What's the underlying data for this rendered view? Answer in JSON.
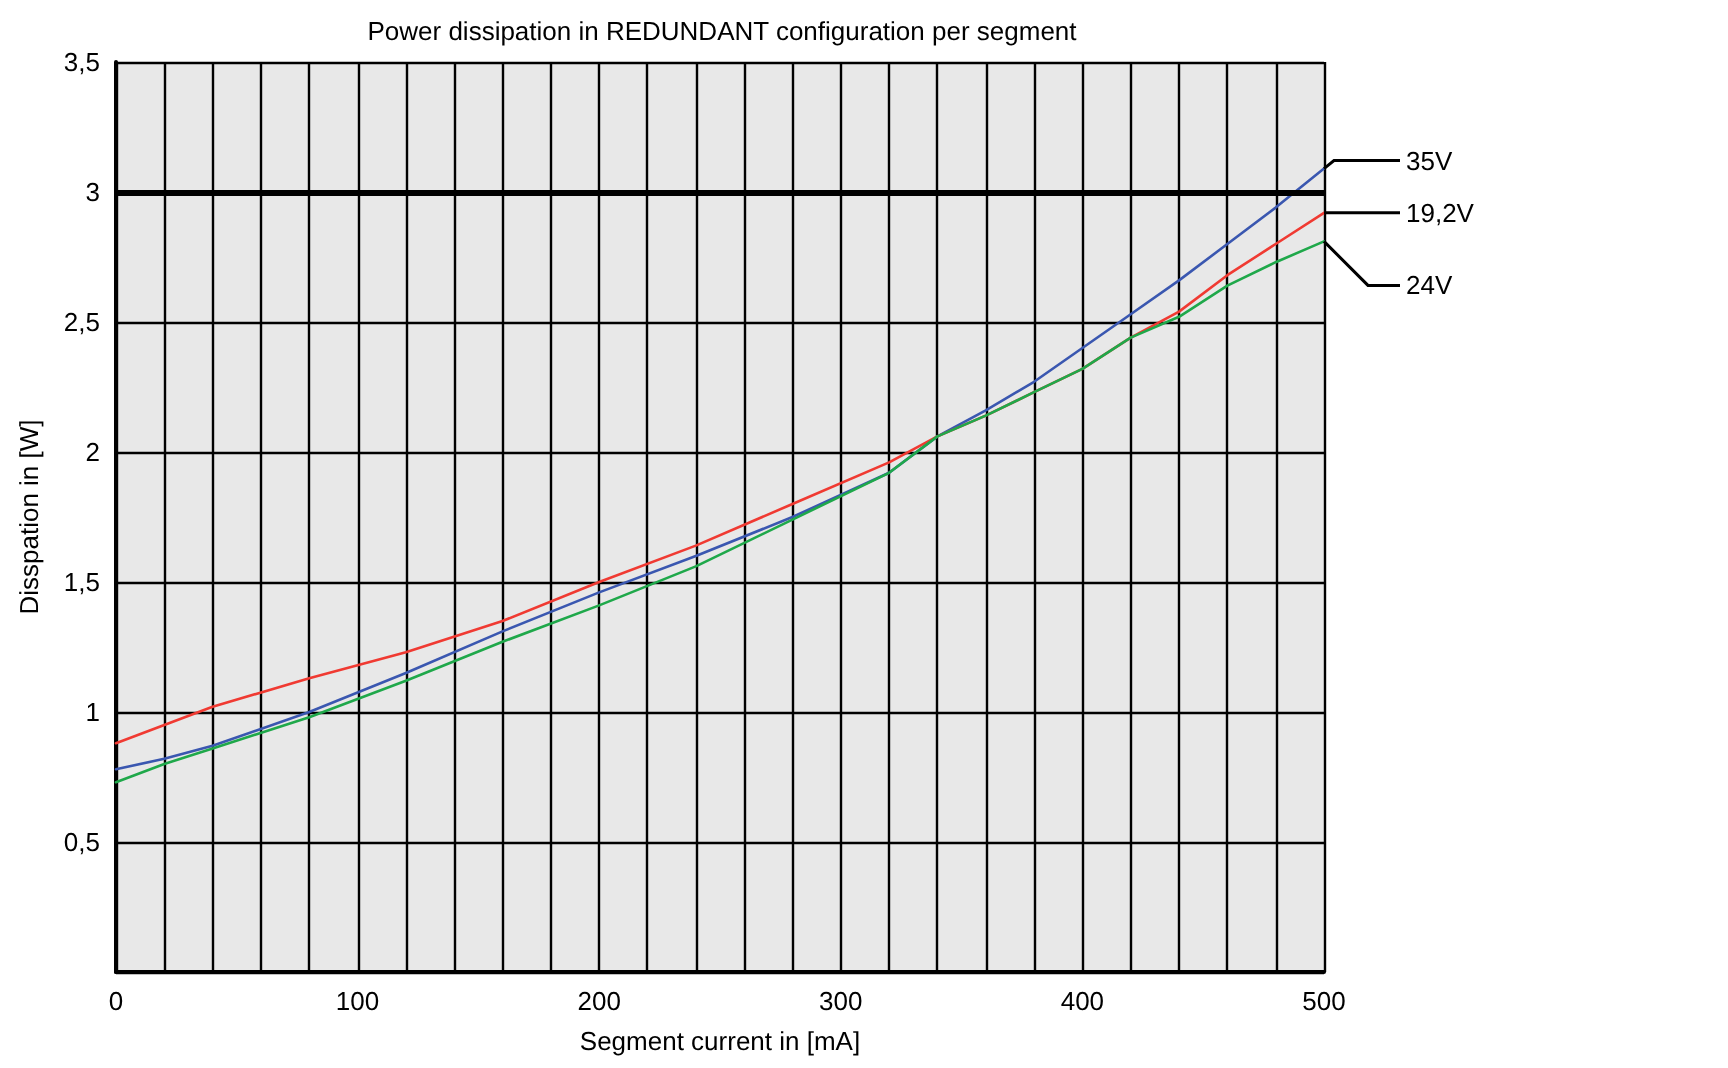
{
  "chart_data": {
    "type": "line",
    "title": "Power dissipation in REDUNDANT configuration per segment",
    "xlabel": "Segment current in [mA]",
    "ylabel": "Disspation in [W]",
    "xlim": [
      0,
      500
    ],
    "xticks": [
      0,
      {
        "value": 20,
        "label": null
      },
      {
        "value": 40,
        "label": null
      },
      {
        "value": 60,
        "label": null
      },
      {
        "value": 80,
        "label": null
      },
      100,
      {
        "value": 120,
        "label": null
      },
      {
        "value": 140,
        "label": null
      },
      {
        "value": 160,
        "label": null
      },
      {
        "value": 180,
        "label": null
      },
      200,
      {
        "value": 220,
        "label": null
      },
      {
        "value": 240,
        "label": null
      },
      {
        "value": 260,
        "label": null
      },
      {
        "value": 280,
        "label": null
      },
      300,
      {
        "value": 320,
        "label": null
      },
      {
        "value": 340,
        "label": null
      },
      {
        "value": 360,
        "label": null
      },
      {
        "value": 380,
        "label": null
      },
      400,
      {
        "value": 420,
        "label": null
      },
      {
        "value": 440,
        "label": null
      },
      {
        "value": 460,
        "label": null
      },
      {
        "value": 480,
        "label": null
      },
      500
    ],
    "ylim": [
      0,
      3.5
    ],
    "yticks": [
      {
        "value": 0,
        "label": null
      },
      {
        "value": 0.5,
        "label": "0,5"
      },
      1,
      {
        "value": 1.5,
        "label": "1,5"
      },
      2,
      {
        "value": 2.5,
        "label": "2,5"
      },
      3,
      {
        "value": 3.5,
        "label": "3,5"
      }
    ],
    "grid": true,
    "legend": false,
    "marker": "none",
    "line_style": "solid",
    "x": [
      0,
      20,
      40,
      80,
      120,
      160,
      200,
      240,
      280,
      320,
      340,
      360,
      380,
      400,
      420,
      440,
      460,
      480,
      500
    ],
    "series": [
      {
        "name": "35V",
        "color": "#3a57b0",
        "values": [
          0.78,
          0.82,
          0.87,
          1.0,
          1.15,
          1.31,
          1.46,
          1.6,
          1.75,
          1.92,
          2.06,
          2.16,
          2.27,
          2.4,
          2.53,
          2.66,
          2.8,
          2.94,
          3.09
        ]
      },
      {
        "name": "19,2V",
        "color": "#f03a32",
        "values": [
          0.88,
          0.95,
          1.02,
          1.13,
          1.23,
          1.35,
          1.5,
          1.64,
          1.8,
          1.96,
          2.06,
          2.14,
          2.23,
          2.32,
          2.44,
          2.54,
          2.68,
          2.8,
          2.92
        ]
      },
      {
        "name": "24V",
        "color": "#1fa84a",
        "values": [
          0.73,
          0.8,
          0.86,
          0.98,
          1.12,
          1.27,
          1.41,
          1.56,
          1.74,
          1.92,
          2.06,
          2.14,
          2.23,
          2.32,
          2.44,
          2.52,
          2.64,
          2.73,
          2.81
        ]
      }
    ],
    "ref_lines": [
      {
        "axis": "y",
        "value": 3,
        "label": null,
        "color": "#000000",
        "line_style": "solid"
      }
    ]
  }
}
